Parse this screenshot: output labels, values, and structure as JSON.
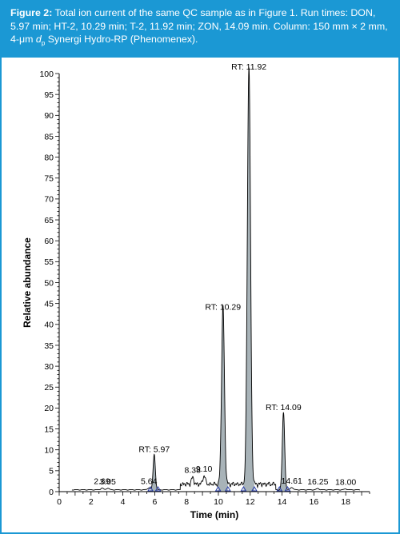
{
  "caption": {
    "label": "Figure 2:",
    "line1_rest": " Total ion current of the same QC sample as in Figure 1. Run times: DON,",
    "line2": "5.97 min; HT-2, 10.29 min; T-2, 11.92 min; ZON, 14.09 min. Column: 150 mm × 2 mm,",
    "line3_pre": "4-μm ",
    "line3_d": "d",
    "line3_sub": "p",
    "line3_post": " Synergi Hydro-RP (Phenomenex)."
  },
  "colors": {
    "accent": "#1b98d4",
    "peak_fill": "#a8b3b8",
    "trace": "#000000",
    "baseline_marker": "#2b3fa8"
  },
  "chart_data": {
    "type": "area",
    "xlabel": "Time (min)",
    "ylabel": "Relative abundance",
    "xlim": [
      0,
      19.5
    ],
    "ylim": [
      0,
      100
    ],
    "x_ticks": [
      0,
      2,
      4,
      6,
      8,
      10,
      12,
      14,
      16,
      18
    ],
    "y_ticks": [
      0,
      5,
      10,
      15,
      20,
      25,
      30,
      35,
      40,
      45,
      50,
      55,
      60,
      65,
      70,
      75,
      80,
      85,
      90,
      95,
      100
    ],
    "grid": false,
    "peaks": [
      {
        "rt": 5.97,
        "height": 8.5,
        "label": "RT: 5.97",
        "filled": true
      },
      {
        "rt": 10.29,
        "height": 42.5,
        "label": "RT: 10.29",
        "filled": true
      },
      {
        "rt": 11.92,
        "height": 100,
        "label": "RT: 11.92",
        "filled": true
      },
      {
        "rt": 14.09,
        "height": 18.5,
        "label": "RT: 14.09",
        "filled": true
      }
    ],
    "minor_peaks": [
      {
        "rt": 2.69,
        "height": 0.4,
        "label": "2.69"
      },
      {
        "rt": 3.05,
        "height": 0.4,
        "label": "3.05"
      },
      {
        "rt": 5.64,
        "height": 0.5,
        "label": "5.64"
      },
      {
        "rt": 8.38,
        "height": 1.5,
        "label": "8.38"
      },
      {
        "rt": 9.1,
        "height": 2.0,
        "label": "9.10"
      },
      {
        "rt": 14.61,
        "height": 0.6,
        "label": "14.61"
      },
      {
        "rt": 16.25,
        "height": 0.3,
        "label": "16.25"
      },
      {
        "rt": 18.0,
        "height": 0.2,
        "label": "18.00"
      }
    ]
  }
}
